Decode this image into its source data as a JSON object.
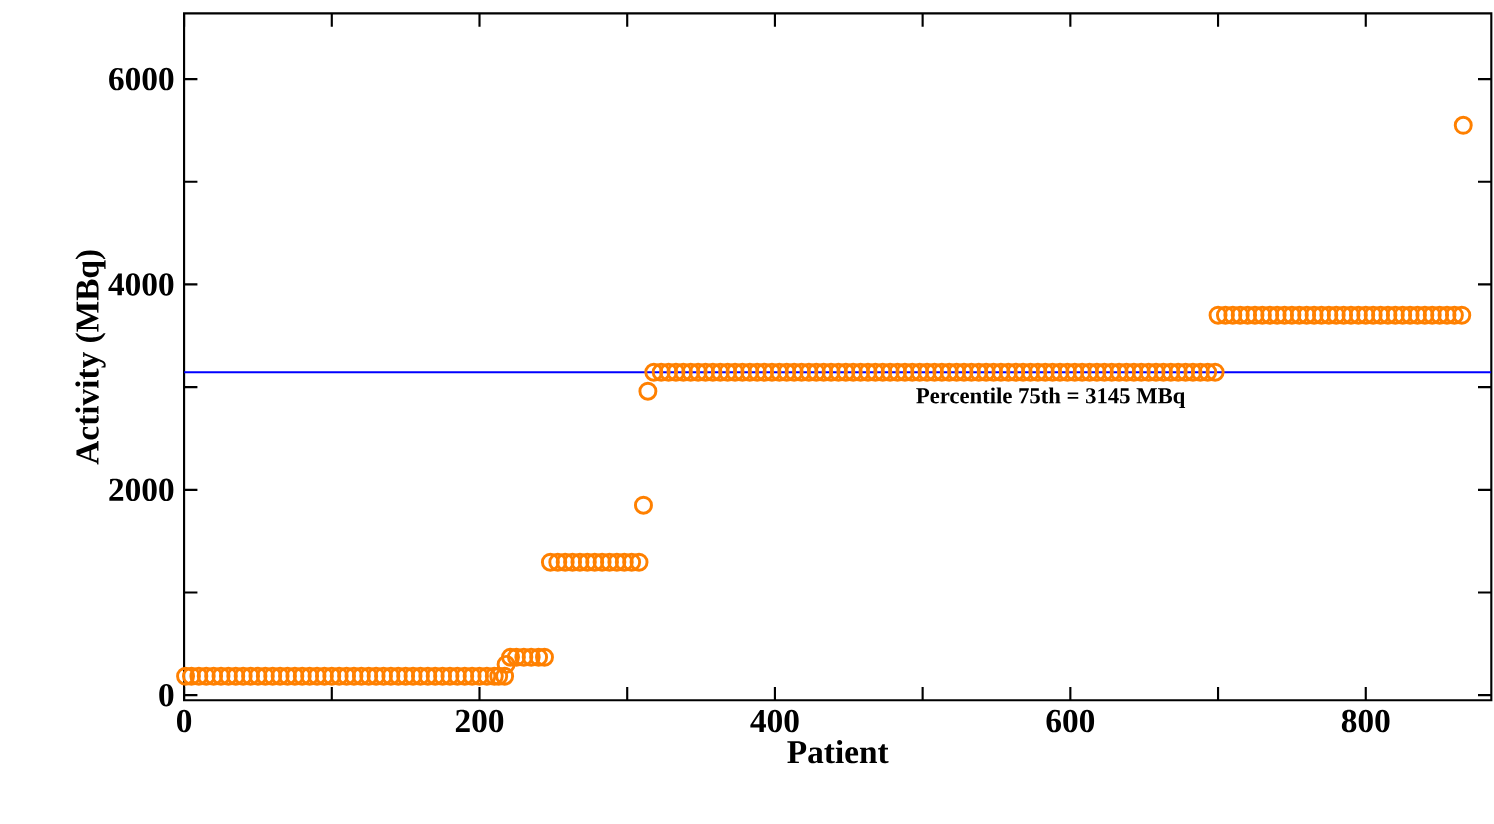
{
  "chart_data": {
    "type": "scatter",
    "xlabel": "Patient",
    "ylabel": "Activity (MBq)",
    "xlim": [
      0,
      885
    ],
    "ylim": [
      -50,
      6640
    ],
    "xticks": [
      0,
      {
        "value": 100,
        "label": null
      },
      200,
      {
        "value": 300,
        "label": null
      },
      400,
      {
        "value": 500,
        "label": null
      },
      600,
      {
        "value": 700,
        "label": null
      },
      800
    ],
    "yticks": [
      0,
      {
        "value": 1000,
        "label": null
      },
      2000,
      {
        "value": 3000,
        "label": null
      },
      4000,
      {
        "value": 5000,
        "label": null
      },
      6000
    ],
    "marker": "circle",
    "grid": false,
    "ref_lines": [
      {
        "axis": "y",
        "value": 3145,
        "label": "Percentile 75th = 3145 MBq",
        "color": "#0000ff"
      }
    ],
    "series": [
      {
        "color": "#ff8000",
        "x": [
          1,
          5,
          10,
          15,
          20,
          25,
          30,
          35,
          40,
          45,
          50,
          55,
          60,
          65,
          70,
          75,
          80,
          85,
          90,
          95,
          100,
          105,
          110,
          115,
          120,
          125,
          130,
          135,
          140,
          145,
          150,
          155,
          160,
          165,
          170,
          175,
          180,
          185,
          190,
          195,
          200,
          205,
          210,
          213,
          217,
          218,
          221,
          225,
          230,
          235,
          240,
          244,
          248,
          253,
          258,
          263,
          268,
          273,
          278,
          283,
          288,
          293,
          298,
          303,
          308,
          311,
          314,
          318,
          323,
          328,
          333,
          338,
          343,
          348,
          353,
          358,
          363,
          368,
          373,
          378,
          383,
          388,
          393,
          398,
          403,
          408,
          413,
          418,
          423,
          428,
          433,
          438,
          443,
          448,
          453,
          458,
          463,
          468,
          473,
          478,
          483,
          488,
          493,
          498,
          503,
          508,
          513,
          518,
          523,
          528,
          533,
          538,
          543,
          548,
          553,
          558,
          563,
          568,
          573,
          578,
          583,
          588,
          593,
          598,
          603,
          608,
          613,
          618,
          623,
          628,
          633,
          638,
          643,
          648,
          653,
          658,
          663,
          668,
          673,
          678,
          683,
          688,
          693,
          698,
          700,
          705,
          710,
          715,
          720,
          725,
          730,
          735,
          740,
          745,
          750,
          755,
          760,
          765,
          770,
          775,
          780,
          785,
          790,
          795,
          800,
          805,
          810,
          815,
          820,
          825,
          830,
          835,
          840,
          845,
          850,
          855,
          860,
          865,
          866
        ],
        "values": [
          185,
          185,
          185,
          185,
          185,
          185,
          185,
          185,
          185,
          185,
          185,
          185,
          185,
          185,
          185,
          185,
          185,
          185,
          185,
          185,
          185,
          185,
          185,
          185,
          185,
          185,
          185,
          185,
          185,
          185,
          185,
          185,
          185,
          185,
          185,
          185,
          185,
          185,
          185,
          185,
          185,
          185,
          185,
          185,
          185,
          300,
          370,
          370,
          370,
          370,
          370,
          370,
          1295,
          1295,
          1295,
          1295,
          1295,
          1295,
          1295,
          1295,
          1295,
          1295,
          1295,
          1295,
          1295,
          1850,
          2960,
          3145,
          3145,
          3145,
          3145,
          3145,
          3145,
          3145,
          3145,
          3145,
          3145,
          3145,
          3145,
          3145,
          3145,
          3145,
          3145,
          3145,
          3145,
          3145,
          3145,
          3145,
          3145,
          3145,
          3145,
          3145,
          3145,
          3145,
          3145,
          3145,
          3145,
          3145,
          3145,
          3145,
          3145,
          3145,
          3145,
          3145,
          3145,
          3145,
          3145,
          3145,
          3145,
          3145,
          3145,
          3145,
          3145,
          3145,
          3145,
          3145,
          3145,
          3145,
          3145,
          3145,
          3145,
          3145,
          3145,
          3145,
          3145,
          3145,
          3145,
          3145,
          3145,
          3145,
          3145,
          3145,
          3145,
          3145,
          3145,
          3145,
          3145,
          3145,
          3145,
          3145,
          3145,
          3145,
          3145,
          3145,
          3700,
          3700,
          3700,
          3700,
          3700,
          3700,
          3700,
          3700,
          3700,
          3700,
          3700,
          3700,
          3700,
          3700,
          3700,
          3700,
          3700,
          3700,
          3700,
          3700,
          3700,
          3700,
          3700,
          3700,
          3700,
          3700,
          3700,
          3700,
          3700,
          3700,
          3700,
          3700,
          3700,
          3700,
          5550
        ]
      }
    ]
  }
}
